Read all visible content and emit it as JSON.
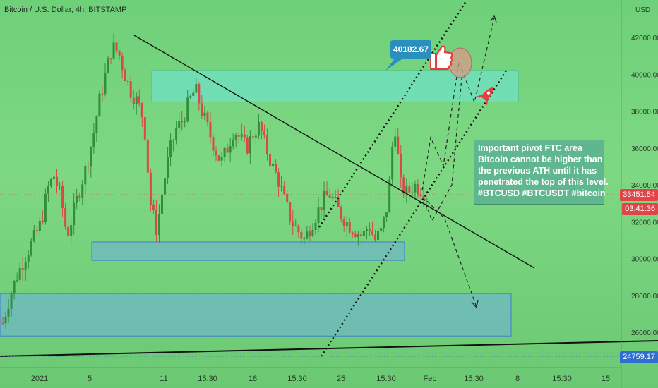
{
  "chart_title": "Bitcoin / U.S. Dollar, 4h, BITSTAMP",
  "currency_label": "USD",
  "annotation": {
    "lines": [
      "Important pivot FTC area",
      "Bitcoin cannot be higher than",
      "the previous ATH until it has",
      "penetrated the top of this level.",
      "#BTCUSD #BTCUSDT #bitcoin"
    ]
  },
  "callout_value": "40182.67",
  "last_price": "33451.54",
  "countdown": "03:41:36",
  "low_price": "24759.17",
  "colors": {
    "background": "#7ed883",
    "bull_candle": "#2f8f3b",
    "bear_candle": "#d84a4a",
    "zone_top": "#6fe0c4",
    "zone_blue": "#6fb7c9",
    "price_tag": "#e0454a",
    "low_tag": "#2f6fd0",
    "callout": "#2a8fbd"
  },
  "chart_data": {
    "type": "line",
    "title": "Bitcoin / U.S. Dollar, 4h, BITSTAMP",
    "xlabel": "",
    "ylabel": "USD",
    "ylim": [
      24000,
      43500
    ],
    "y_ticks": [
      26000.0,
      28000.0,
      30000.0,
      32000.0,
      34000.0,
      36000.0,
      38000.0,
      40000.0,
      42000.0
    ],
    "x_tick_labels": [
      "2021",
      "5",
      "11",
      "15:30",
      "18",
      "15:30",
      "25",
      "15:30",
      "Feb",
      "15:30",
      "8",
      "15:30",
      "15"
    ],
    "series": [
      {
        "values": [
          26500,
          27800,
          28900,
          29700,
          30500,
          31200,
          32000,
          33800,
          34500,
          33400,
          31200,
          32500,
          33800,
          35000,
          36500,
          38500,
          40000,
          41500,
          41200,
          40000,
          39000,
          38500,
          37500,
          33000,
          31500,
          34000,
          35800,
          37000,
          37500,
          38500,
          39200,
          38000,
          37000,
          36000,
          35200,
          36000,
          37000,
          36500,
          36000,
          36800,
          37200,
          36000,
          35000,
          34200,
          33000,
          32000,
          31500,
          31000,
          31800,
          32500,
          33200,
          33500,
          32800,
          32200,
          31800,
          31500,
          31200,
          31800,
          31000,
          31500,
          33000,
          37500,
          34000,
          33500,
          34000,
          33800,
          33451.54
        ]
      }
    ],
    "zones": [
      {
        "name": "pivot FTC area",
        "y_range": [
          38500,
          40200
        ]
      },
      {
        "name": "support zone",
        "y_range": [
          29900,
          30900
        ]
      },
      {
        "name": "lower zone",
        "y_range": [
          25800,
          28100
        ]
      }
    ],
    "last_price": 33451.54,
    "low_line": 24759.17,
    "grid": false
  }
}
